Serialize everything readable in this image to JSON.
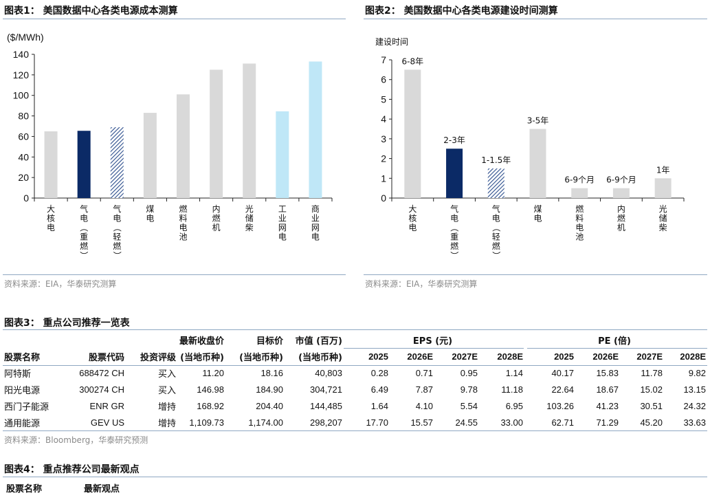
{
  "figures": {
    "fig1": {
      "title": "图表1： 美国数据中心各类电源成本测算",
      "source": "资料来源：EIA，华泰研究测算"
    },
    "fig2": {
      "title": "图表2： 美国数据中心各类电源建设时间测算",
      "source": "资料来源：EIA，华泰研究测算"
    },
    "fig3": {
      "title": "图表3： 重点公司推荐一览表",
      "source": "资料来源：Bloomberg，华泰研究预测"
    },
    "fig4": {
      "title": "图表4： 重点推荐公司最新观点",
      "col1": "股票名称",
      "col2": "最新观点"
    }
  },
  "chart_data": [
    {
      "type": "bar",
      "unit": "($/MWh)",
      "ylim": [
        0,
        140
      ],
      "yticks": [
        "0",
        "20",
        "40",
        "60",
        "80",
        "100",
        "120",
        "140"
      ],
      "categories": [
        "大核电",
        "气电（重燃）",
        "气电（轻燃）",
        "煤电",
        "燃料电池",
        "内燃机",
        "光储柴",
        "工业网电",
        "商业网电"
      ],
      "values": [
        65,
        65.5,
        69,
        83,
        101,
        125,
        131,
        84.5,
        133
      ],
      "colors": {
        "default": "#d9d9d9",
        "gas_heavy": "#0b2a66",
        "grid": "#bfe7f7",
        "hatch": "#2b4d8c"
      }
    },
    {
      "type": "bar",
      "ylabel": "建设时间",
      "ylim": [
        0,
        7
      ],
      "yticks": [
        "0",
        "1",
        "2",
        "3",
        "4",
        "5",
        "6",
        "7"
      ],
      "categories": [
        "大核电",
        "气电（重燃）",
        "气电（轻燃）",
        "煤电",
        "燃料电池",
        "内燃机",
        "光储柴"
      ],
      "values": [
        6.5,
        2.5,
        1.5,
        3.5,
        0.5,
        0.5,
        1
      ],
      "annotations": [
        "6-8年",
        "2-3年",
        "1-1.5年",
        "3-5年",
        "6-9个月",
        "6-9个月",
        "1年"
      ]
    }
  ],
  "table": {
    "group_eps": "EPS (元)",
    "group_pe": "PE (倍)",
    "head1": [
      "",
      "",
      "",
      "最新收盘价",
      "目标价",
      "市值 (百万)"
    ],
    "head2": [
      "股票名称",
      "股票代码",
      "投资评级",
      "(当地币种)",
      "(当地币种)",
      "(当地币种)",
      "2025",
      "2026E",
      "2027E",
      "2028E",
      "2025",
      "2026E",
      "2027E",
      "2028E"
    ],
    "rows": [
      [
        "阿特斯",
        "688472 CH",
        "买入",
        "11.20",
        "18.16",
        "40,803",
        "0.28",
        "0.71",
        "0.95",
        "1.14",
        "40.17",
        "15.83",
        "11.78",
        "9.82"
      ],
      [
        "阳光电源",
        "300274 CH",
        "买入",
        "146.98",
        "184.90",
        "304,721",
        "6.49",
        "7.87",
        "9.78",
        "11.18",
        "22.64",
        "18.67",
        "15.02",
        "13.15"
      ],
      [
        "西门子能源",
        "ENR GR",
        "增持",
        "168.92",
        "204.40",
        "144,485",
        "1.64",
        "4.10",
        "5.54",
        "6.95",
        "103.26",
        "41.23",
        "30.51",
        "24.32"
      ],
      [
        "通用能源",
        "GEV US",
        "增持",
        "1,109.73",
        "1,174.00",
        "298,207",
        "17.70",
        "15.57",
        "24.55",
        "33.00",
        "62.71",
        "71.29",
        "45.20",
        "33.63"
      ]
    ]
  }
}
